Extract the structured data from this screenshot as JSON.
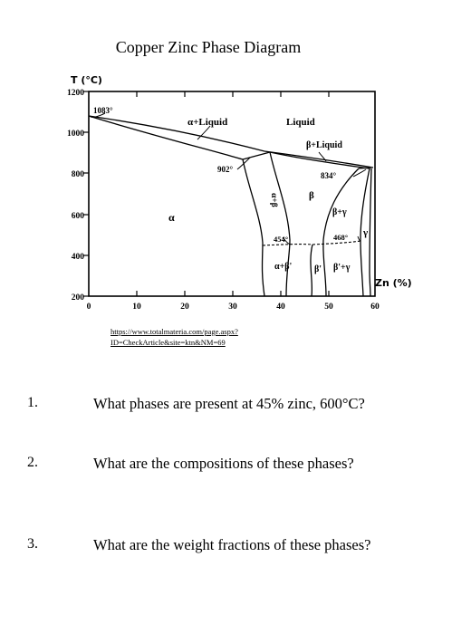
{
  "title": "Copper Zinc Phase Diagram",
  "axis": {
    "ylabel": "T (°C)",
    "xlabel": "Zn (%)",
    "yticks": [
      "1200",
      "1000",
      "800",
      "600",
      "400",
      "200"
    ],
    "xticks": [
      "0",
      "10",
      "20",
      "30",
      "40",
      "50",
      "60"
    ]
  },
  "regions": {
    "alpha_liquid": "α+Liquid",
    "liquid": "Liquid",
    "beta_liquid": "β+Liquid",
    "alpha": "α",
    "alpha_beta": "α+β",
    "beta": "β",
    "beta_gamma": "β+γ",
    "gamma": "γ",
    "alpha_betaprime": "α+β'",
    "betaprime": "β'",
    "betaprime_gamma": "β'+γ"
  },
  "temperatures": {
    "t1083": "1083°",
    "t902": "902°",
    "t834": "834°",
    "t454": "454°",
    "t468": "468°"
  },
  "source": {
    "line1": "https://www.totalmateria.com/page.aspx?",
    "line2": "ID=CheckArticle&site=ktn&NM=69"
  },
  "questions": [
    {
      "num": "1.",
      "text": "What phases are present at 45% zinc, 600°C?"
    },
    {
      "num": "2.",
      "text": "What are the compositions of these phases?"
    },
    {
      "num": "3.",
      "text": "What are the weight fractions of these phases?"
    }
  ]
}
